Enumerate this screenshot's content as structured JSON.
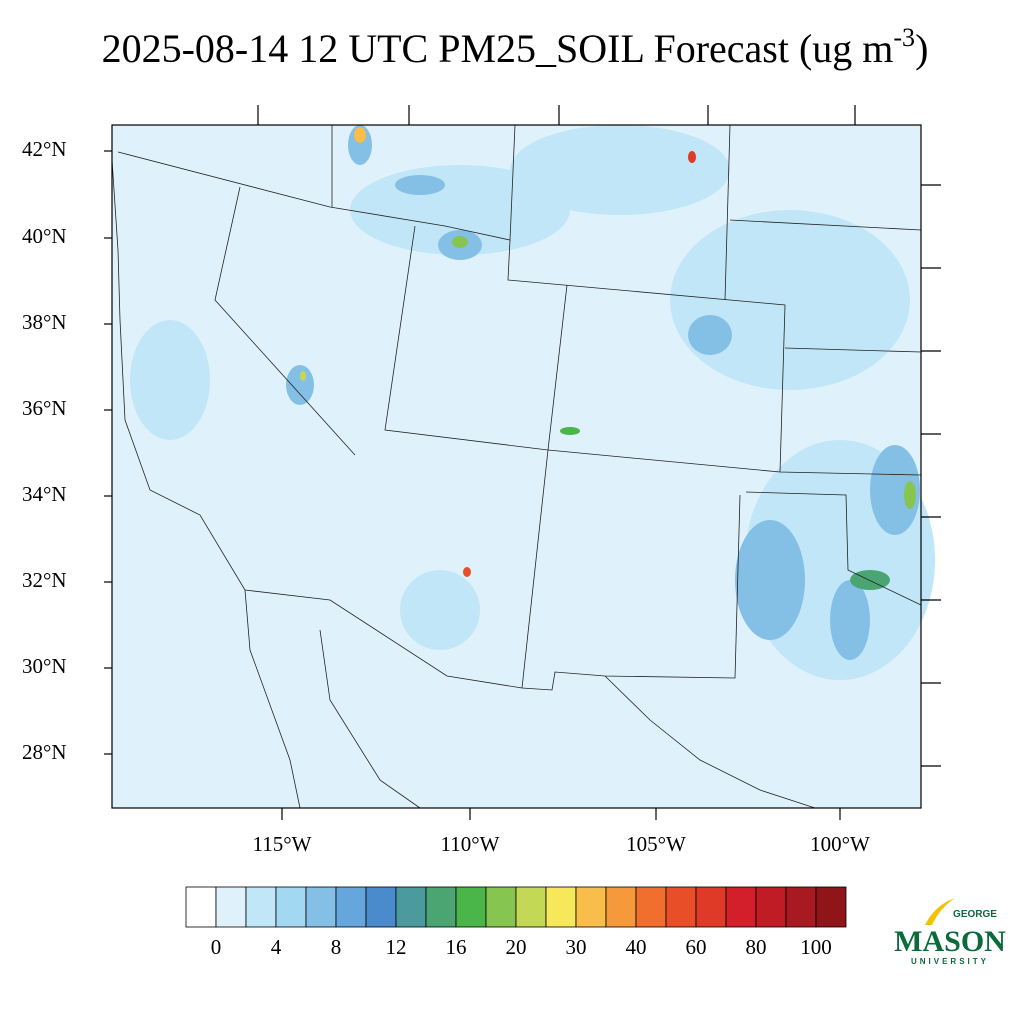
{
  "title": "2025-08-14 12 UTC PM25_SOIL Forecast (ug m",
  "title_superscript": "-3",
  "title_end": ")",
  "lat_labels": [
    "42°N",
    "40°N",
    "38°N",
    "36°N",
    "34°N",
    "32°N",
    "30°N",
    "28°N"
  ],
  "lon_labels": [
    "115°W",
    "110°W",
    "105°W",
    "100°W"
  ],
  "colorbar": {
    "labels": [
      0,
      4,
      8,
      12,
      16,
      20,
      30,
      40,
      60,
      80,
      100
    ],
    "colors": [
      "#ffffff",
      "#dff2fb",
      "#c1e6f7",
      "#a2d8f2",
      "#84bfe6",
      "#65a6dd",
      "#4a8bcd",
      "#4a9a9e",
      "#4aa572",
      "#4ab548",
      "#86c550",
      "#c3d855",
      "#f7e75a",
      "#f8bd4b",
      "#f6993b",
      "#f16f2e",
      "#e84f29",
      "#de3a27",
      "#d31f2a",
      "#bf1c25",
      "#a81a22",
      "#8f1519"
    ]
  },
  "logo": {
    "top": "GEORGE",
    "main": "MASON",
    "bottom": "UNIVERSITY"
  }
}
